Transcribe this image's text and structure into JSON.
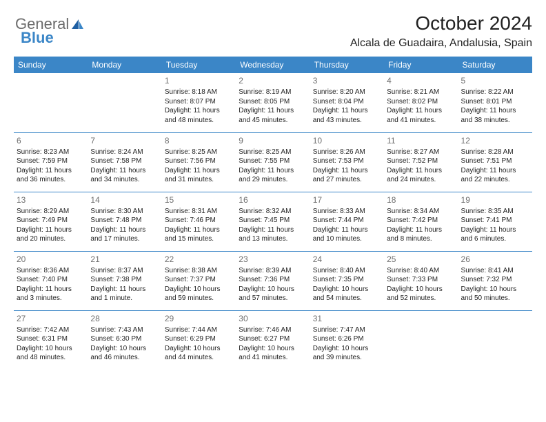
{
  "brand": {
    "word1": "General",
    "word2": "Blue"
  },
  "title": "October 2024",
  "location": "Alcala de Guadaira, Andalusia, Spain",
  "colors": {
    "header_bg": "#3b86c7",
    "header_text": "#ffffff",
    "border": "#3b86c7",
    "daynum": "#6f6f6f",
    "logo_gray": "#6b6b6b",
    "logo_blue": "#3b86c7"
  },
  "dayHeaders": [
    "Sunday",
    "Monday",
    "Tuesday",
    "Wednesday",
    "Thursday",
    "Friday",
    "Saturday"
  ],
  "weeks": [
    [
      null,
      null,
      {
        "n": "1",
        "sr": "Sunrise: 8:18 AM",
        "ss": "Sunset: 8:07 PM",
        "dl1": "Daylight: 11 hours",
        "dl2": "and 48 minutes."
      },
      {
        "n": "2",
        "sr": "Sunrise: 8:19 AM",
        "ss": "Sunset: 8:05 PM",
        "dl1": "Daylight: 11 hours",
        "dl2": "and 45 minutes."
      },
      {
        "n": "3",
        "sr": "Sunrise: 8:20 AM",
        "ss": "Sunset: 8:04 PM",
        "dl1": "Daylight: 11 hours",
        "dl2": "and 43 minutes."
      },
      {
        "n": "4",
        "sr": "Sunrise: 8:21 AM",
        "ss": "Sunset: 8:02 PM",
        "dl1": "Daylight: 11 hours",
        "dl2": "and 41 minutes."
      },
      {
        "n": "5",
        "sr": "Sunrise: 8:22 AM",
        "ss": "Sunset: 8:01 PM",
        "dl1": "Daylight: 11 hours",
        "dl2": "and 38 minutes."
      }
    ],
    [
      {
        "n": "6",
        "sr": "Sunrise: 8:23 AM",
        "ss": "Sunset: 7:59 PM",
        "dl1": "Daylight: 11 hours",
        "dl2": "and 36 minutes."
      },
      {
        "n": "7",
        "sr": "Sunrise: 8:24 AM",
        "ss": "Sunset: 7:58 PM",
        "dl1": "Daylight: 11 hours",
        "dl2": "and 34 minutes."
      },
      {
        "n": "8",
        "sr": "Sunrise: 8:25 AM",
        "ss": "Sunset: 7:56 PM",
        "dl1": "Daylight: 11 hours",
        "dl2": "and 31 minutes."
      },
      {
        "n": "9",
        "sr": "Sunrise: 8:25 AM",
        "ss": "Sunset: 7:55 PM",
        "dl1": "Daylight: 11 hours",
        "dl2": "and 29 minutes."
      },
      {
        "n": "10",
        "sr": "Sunrise: 8:26 AM",
        "ss": "Sunset: 7:53 PM",
        "dl1": "Daylight: 11 hours",
        "dl2": "and 27 minutes."
      },
      {
        "n": "11",
        "sr": "Sunrise: 8:27 AM",
        "ss": "Sunset: 7:52 PM",
        "dl1": "Daylight: 11 hours",
        "dl2": "and 24 minutes."
      },
      {
        "n": "12",
        "sr": "Sunrise: 8:28 AM",
        "ss": "Sunset: 7:51 PM",
        "dl1": "Daylight: 11 hours",
        "dl2": "and 22 minutes."
      }
    ],
    [
      {
        "n": "13",
        "sr": "Sunrise: 8:29 AM",
        "ss": "Sunset: 7:49 PM",
        "dl1": "Daylight: 11 hours",
        "dl2": "and 20 minutes."
      },
      {
        "n": "14",
        "sr": "Sunrise: 8:30 AM",
        "ss": "Sunset: 7:48 PM",
        "dl1": "Daylight: 11 hours",
        "dl2": "and 17 minutes."
      },
      {
        "n": "15",
        "sr": "Sunrise: 8:31 AM",
        "ss": "Sunset: 7:46 PM",
        "dl1": "Daylight: 11 hours",
        "dl2": "and 15 minutes."
      },
      {
        "n": "16",
        "sr": "Sunrise: 8:32 AM",
        "ss": "Sunset: 7:45 PM",
        "dl1": "Daylight: 11 hours",
        "dl2": "and 13 minutes."
      },
      {
        "n": "17",
        "sr": "Sunrise: 8:33 AM",
        "ss": "Sunset: 7:44 PM",
        "dl1": "Daylight: 11 hours",
        "dl2": "and 10 minutes."
      },
      {
        "n": "18",
        "sr": "Sunrise: 8:34 AM",
        "ss": "Sunset: 7:42 PM",
        "dl1": "Daylight: 11 hours",
        "dl2": "and 8 minutes."
      },
      {
        "n": "19",
        "sr": "Sunrise: 8:35 AM",
        "ss": "Sunset: 7:41 PM",
        "dl1": "Daylight: 11 hours",
        "dl2": "and 6 minutes."
      }
    ],
    [
      {
        "n": "20",
        "sr": "Sunrise: 8:36 AM",
        "ss": "Sunset: 7:40 PM",
        "dl1": "Daylight: 11 hours",
        "dl2": "and 3 minutes."
      },
      {
        "n": "21",
        "sr": "Sunrise: 8:37 AM",
        "ss": "Sunset: 7:38 PM",
        "dl1": "Daylight: 11 hours",
        "dl2": "and 1 minute."
      },
      {
        "n": "22",
        "sr": "Sunrise: 8:38 AM",
        "ss": "Sunset: 7:37 PM",
        "dl1": "Daylight: 10 hours",
        "dl2": "and 59 minutes."
      },
      {
        "n": "23",
        "sr": "Sunrise: 8:39 AM",
        "ss": "Sunset: 7:36 PM",
        "dl1": "Daylight: 10 hours",
        "dl2": "and 57 minutes."
      },
      {
        "n": "24",
        "sr": "Sunrise: 8:40 AM",
        "ss": "Sunset: 7:35 PM",
        "dl1": "Daylight: 10 hours",
        "dl2": "and 54 minutes."
      },
      {
        "n": "25",
        "sr": "Sunrise: 8:40 AM",
        "ss": "Sunset: 7:33 PM",
        "dl1": "Daylight: 10 hours",
        "dl2": "and 52 minutes."
      },
      {
        "n": "26",
        "sr": "Sunrise: 8:41 AM",
        "ss": "Sunset: 7:32 PM",
        "dl1": "Daylight: 10 hours",
        "dl2": "and 50 minutes."
      }
    ],
    [
      {
        "n": "27",
        "sr": "Sunrise: 7:42 AM",
        "ss": "Sunset: 6:31 PM",
        "dl1": "Daylight: 10 hours",
        "dl2": "and 48 minutes."
      },
      {
        "n": "28",
        "sr": "Sunrise: 7:43 AM",
        "ss": "Sunset: 6:30 PM",
        "dl1": "Daylight: 10 hours",
        "dl2": "and 46 minutes."
      },
      {
        "n": "29",
        "sr": "Sunrise: 7:44 AM",
        "ss": "Sunset: 6:29 PM",
        "dl1": "Daylight: 10 hours",
        "dl2": "and 44 minutes."
      },
      {
        "n": "30",
        "sr": "Sunrise: 7:46 AM",
        "ss": "Sunset: 6:27 PM",
        "dl1": "Daylight: 10 hours",
        "dl2": "and 41 minutes."
      },
      {
        "n": "31",
        "sr": "Sunrise: 7:47 AM",
        "ss": "Sunset: 6:26 PM",
        "dl1": "Daylight: 10 hours",
        "dl2": "and 39 minutes."
      },
      null,
      null
    ]
  ]
}
